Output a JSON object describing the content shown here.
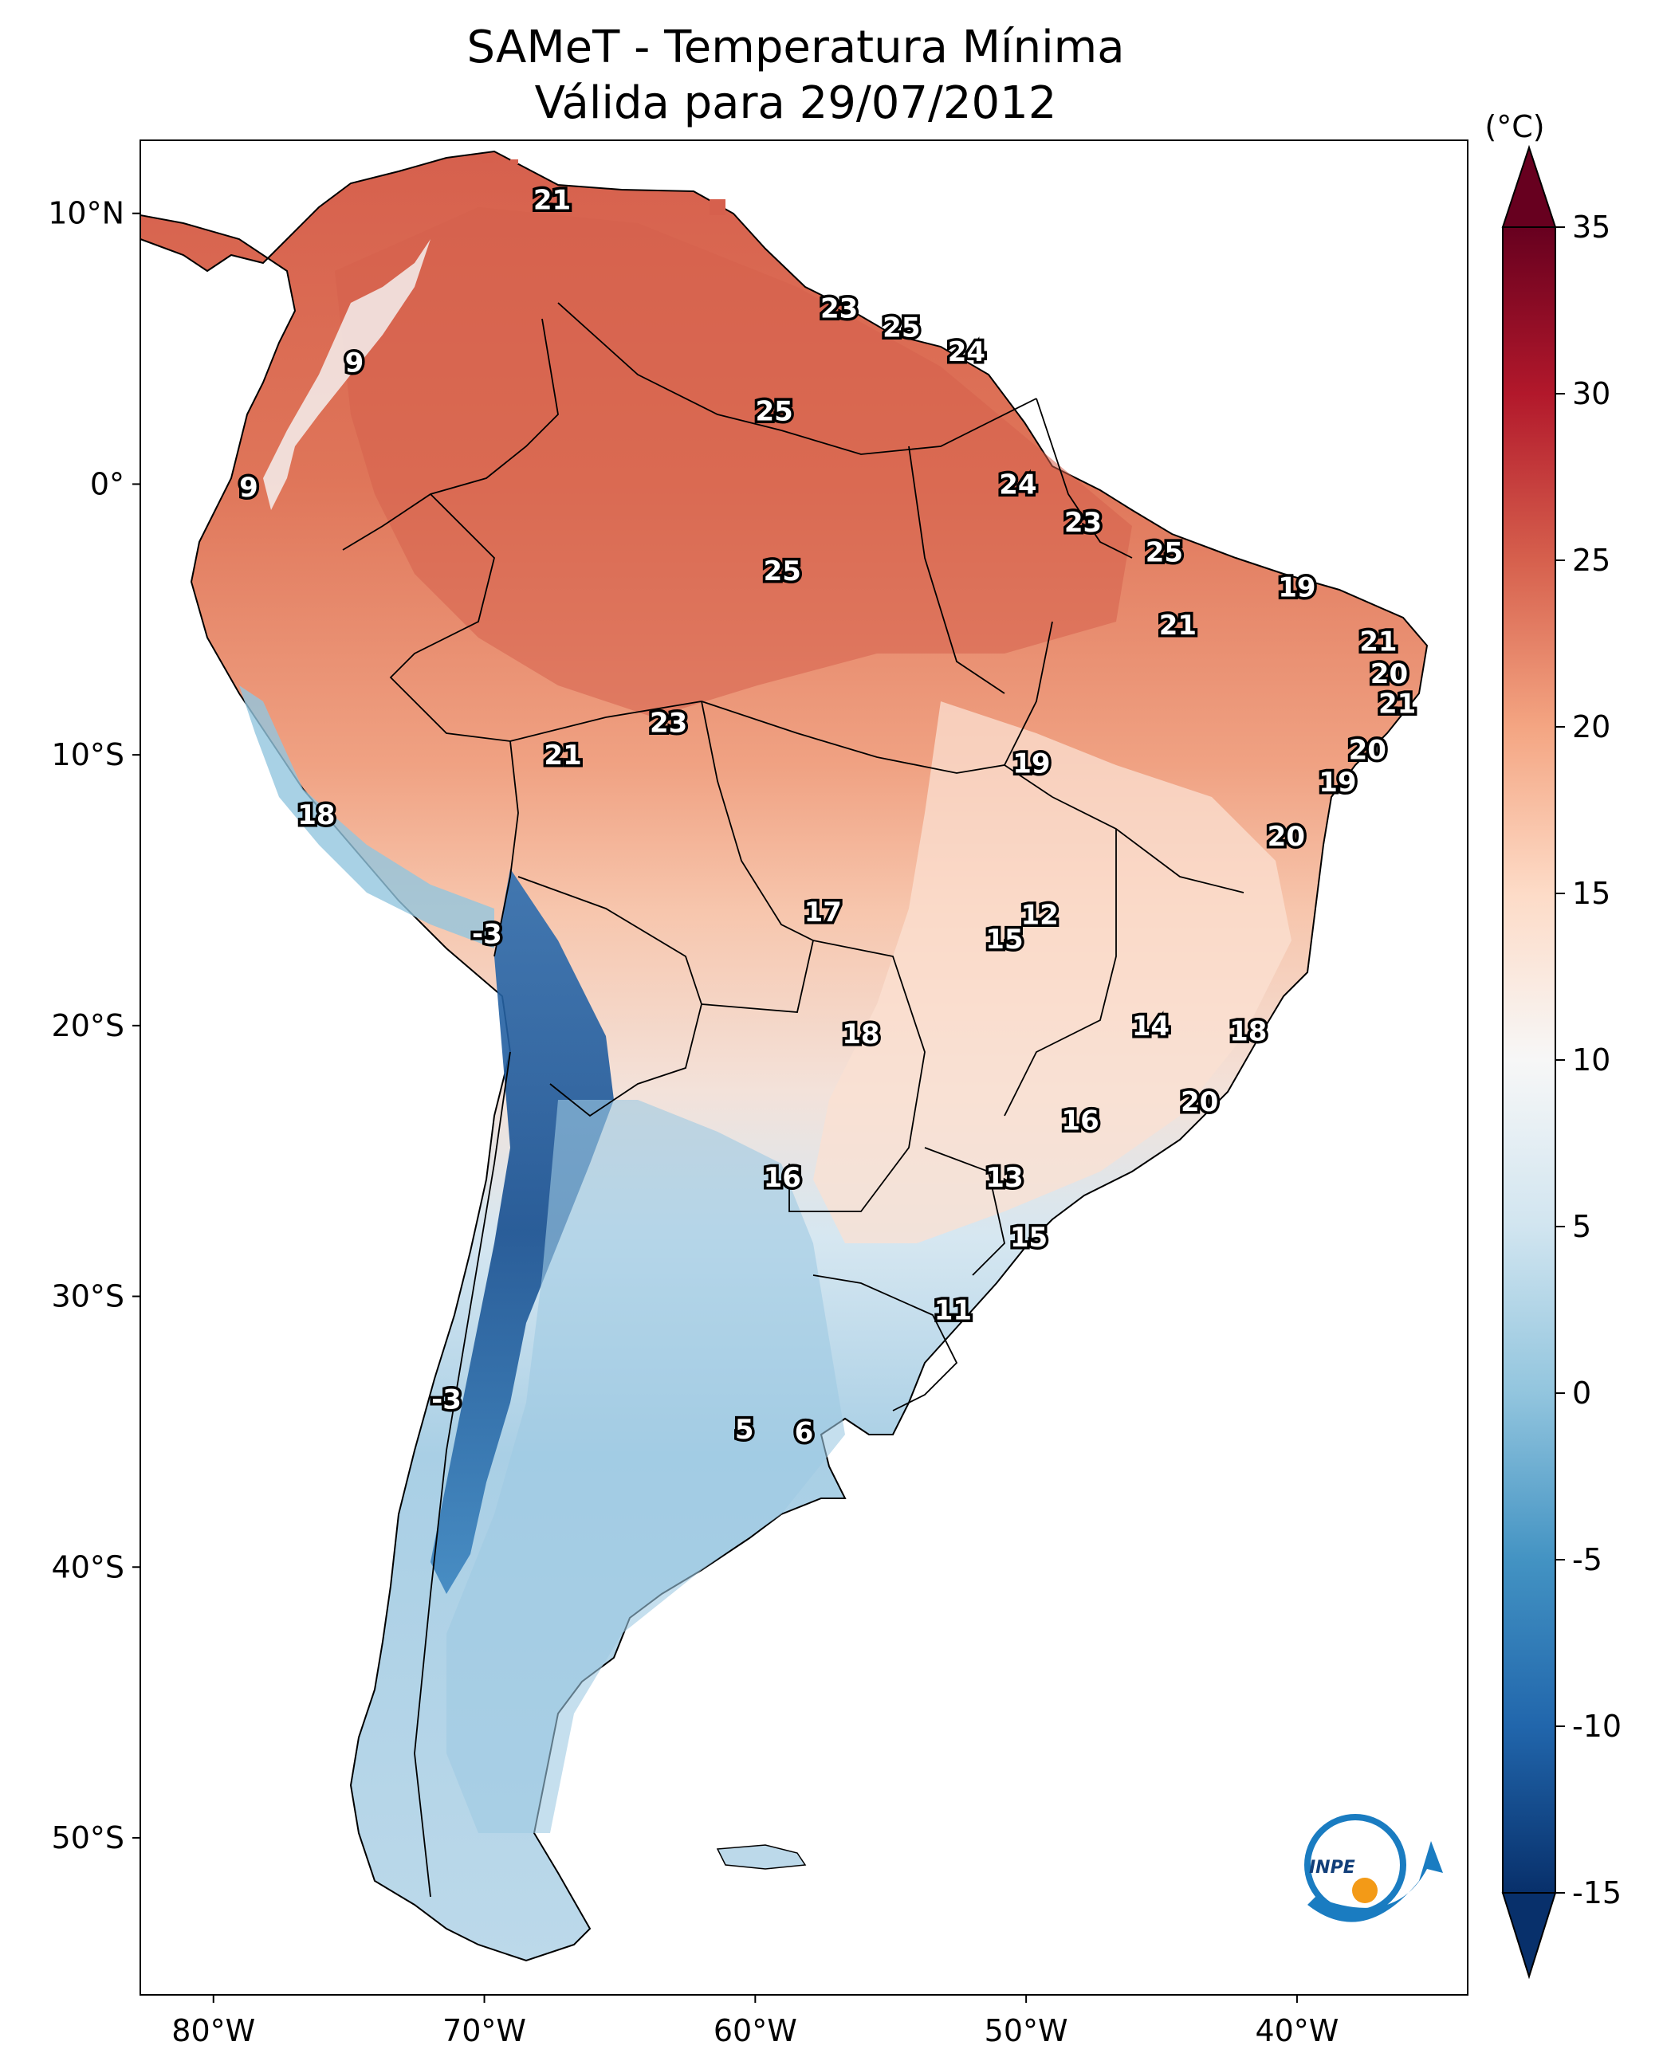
{
  "title_line1": "SAMeT - Temperatura Mínima",
  "title_line2": "Válida para 29/07/2012",
  "colorbar": {
    "unit": "(°C)",
    "ticks": [
      "35",
      "30",
      "25",
      "20",
      "15",
      "10",
      "5",
      "0",
      "-5",
      "-10",
      "-15"
    ],
    "min": -15,
    "max": 35,
    "colors": [
      "#08306b",
      "#2166ac",
      "#4393c3",
      "#92c5de",
      "#d1e5f0",
      "#f7f7f7",
      "#fddbc7",
      "#f4a582",
      "#d6604d",
      "#b2182b",
      "#67001f"
    ]
  },
  "axes": {
    "lon_ticks": [
      "80°W",
      "70°W",
      "60°W",
      "50°W",
      "40°W"
    ],
    "lat_ticks": [
      "10°N",
      "0°",
      "10°S",
      "20°S",
      "30°S",
      "40°S",
      "50°S"
    ]
  },
  "contour_labels": [
    {
      "text": "21",
      "lon": -67.5,
      "lat": 10.5
    },
    {
      "text": "23",
      "lon": -56.9,
      "lat": 6.5
    },
    {
      "text": "25",
      "lon": -54.6,
      "lat": 5.8
    },
    {
      "text": "24",
      "lon": -52.2,
      "lat": 4.9
    },
    {
      "text": "9",
      "lon": -74.8,
      "lat": 4.5
    },
    {
      "text": "25",
      "lon": -59.3,
      "lat": 2.7
    },
    {
      "text": "9",
      "lon": -78.7,
      "lat": -0.1
    },
    {
      "text": "24",
      "lon": -50.3,
      "lat": 0.0
    },
    {
      "text": "23",
      "lon": -47.9,
      "lat": -1.4
    },
    {
      "text": "25",
      "lon": -44.9,
      "lat": -2.5
    },
    {
      "text": "25",
      "lon": -59.0,
      "lat": -3.2
    },
    {
      "text": "19",
      "lon": -40.0,
      "lat": -3.8
    },
    {
      "text": "21",
      "lon": -44.4,
      "lat": -5.2
    },
    {
      "text": "21",
      "lon": -37.0,
      "lat": -5.8
    },
    {
      "text": "20",
      "lon": -36.6,
      "lat": -7.0
    },
    {
      "text": "21",
      "lon": -36.3,
      "lat": -8.1
    },
    {
      "text": "23",
      "lon": -63.2,
      "lat": -8.8
    },
    {
      "text": "20",
      "lon": -37.4,
      "lat": -9.8
    },
    {
      "text": "21",
      "lon": -67.1,
      "lat": -10.0
    },
    {
      "text": "19",
      "lon": -49.8,
      "lat": -10.3
    },
    {
      "text": "19",
      "lon": -38.5,
      "lat": -11.0
    },
    {
      "text": "18",
      "lon": -76.2,
      "lat": -12.2
    },
    {
      "text": "20",
      "lon": -40.4,
      "lat": -13.0
    },
    {
      "text": "17",
      "lon": -57.5,
      "lat": -15.8
    },
    {
      "text": "12",
      "lon": -49.5,
      "lat": -15.9
    },
    {
      "text": "15",
      "lon": -50.8,
      "lat": -16.8
    },
    {
      "text": "-3",
      "lon": -69.9,
      "lat": -16.6
    },
    {
      "text": "14",
      "lon": -45.4,
      "lat": -20.0
    },
    {
      "text": "18",
      "lon": -41.8,
      "lat": -20.2
    },
    {
      "text": "18",
      "lon": -56.1,
      "lat": -20.3
    },
    {
      "text": "20",
      "lon": -43.6,
      "lat": -22.8
    },
    {
      "text": "16",
      "lon": -48.0,
      "lat": -23.5
    },
    {
      "text": "16",
      "lon": -59.0,
      "lat": -25.6
    },
    {
      "text": "13",
      "lon": -50.8,
      "lat": -25.6
    },
    {
      "text": "15",
      "lon": -49.9,
      "lat": -27.8
    },
    {
      "text": "11",
      "lon": -52.7,
      "lat": -30.5
    },
    {
      "text": "-3",
      "lon": -71.4,
      "lat": -33.8
    },
    {
      "text": "5",
      "lon": -60.4,
      "lat": -34.9
    },
    {
      "text": "6",
      "lon": -58.2,
      "lat": -35.0
    }
  ],
  "logo": {
    "text": "INPE"
  }
}
